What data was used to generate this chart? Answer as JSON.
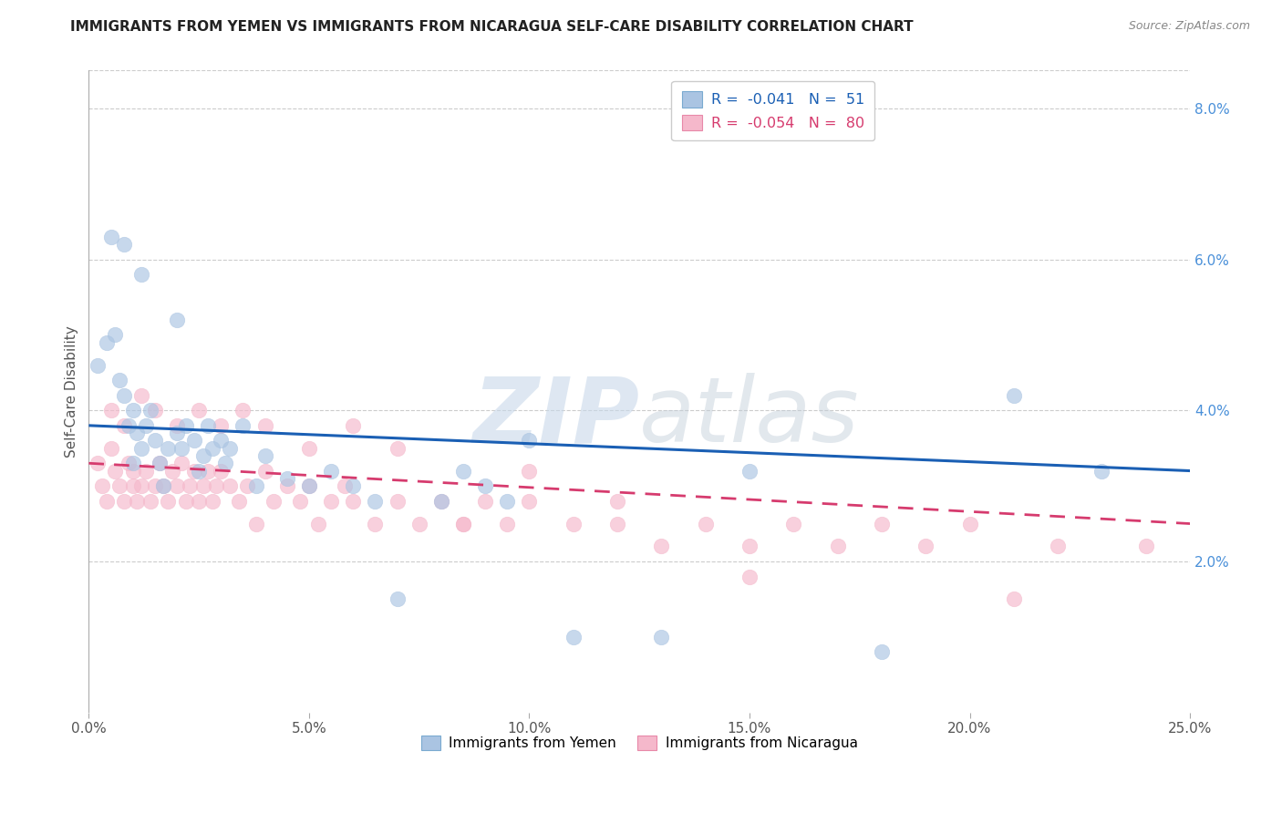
{
  "title": "IMMIGRANTS FROM YEMEN VS IMMIGRANTS FROM NICARAGUA SELF-CARE DISABILITY CORRELATION CHART",
  "source": "Source: ZipAtlas.com",
  "ylabel": "Self-Care Disability",
  "legend_entries": [
    {
      "label": "R =  -0.041   N =  51",
      "color": "#aac4e2"
    },
    {
      "label": "R =  -0.054   N =  80",
      "color": "#f5b8cb"
    }
  ],
  "legend_bottom": [
    {
      "label": "Immigrants from Yemen",
      "color": "#aac4e2"
    },
    {
      "label": "Immigrants from Nicaragua",
      "color": "#f5b8cb"
    }
  ],
  "xlim": [
    0.0,
    0.25
  ],
  "ylim": [
    0.0,
    0.085
  ],
  "right_yticks": [
    0.02,
    0.04,
    0.06,
    0.08
  ],
  "right_yticklabels": [
    "2.0%",
    "4.0%",
    "6.0%",
    "8.0%"
  ],
  "xticklabels": [
    "0.0%",
    "5.0%",
    "10.0%",
    "15.0%",
    "20.0%",
    "25.0%"
  ],
  "xticks": [
    0.0,
    0.05,
    0.1,
    0.15,
    0.2,
    0.25
  ],
  "grid_color": "#cccccc",
  "background_color": "#ffffff",
  "scatter_color_yemen": "#aac4e2",
  "scatter_color_nicaragua": "#f5b8cb",
  "scatter_edge_yemen": "#aac4e2",
  "scatter_edge_nicaragua": "#f5b8cb",
  "trend_color_yemen": "#1a5fb4",
  "trend_color_nicaragua": "#d63b6e",
  "ytick_color": "#4a90d9",
  "watermark_zip": "ZIP",
  "watermark_atlas": "atlas",
  "yemen_x": [
    0.002,
    0.004,
    0.006,
    0.007,
    0.008,
    0.009,
    0.01,
    0.01,
    0.011,
    0.012,
    0.013,
    0.014,
    0.015,
    0.016,
    0.017,
    0.018,
    0.02,
    0.021,
    0.022,
    0.024,
    0.025,
    0.026,
    0.027,
    0.028,
    0.03,
    0.031,
    0.032,
    0.035,
    0.038,
    0.04,
    0.045,
    0.05,
    0.055,
    0.06,
    0.065,
    0.07,
    0.08,
    0.085,
    0.09,
    0.095,
    0.1,
    0.11,
    0.13,
    0.15,
    0.18,
    0.21,
    0.23,
    0.005,
    0.008,
    0.012,
    0.02
  ],
  "yemen_y": [
    0.046,
    0.049,
    0.05,
    0.044,
    0.042,
    0.038,
    0.04,
    0.033,
    0.037,
    0.035,
    0.038,
    0.04,
    0.036,
    0.033,
    0.03,
    0.035,
    0.037,
    0.035,
    0.038,
    0.036,
    0.032,
    0.034,
    0.038,
    0.035,
    0.036,
    0.033,
    0.035,
    0.038,
    0.03,
    0.034,
    0.031,
    0.03,
    0.032,
    0.03,
    0.028,
    0.015,
    0.028,
    0.032,
    0.03,
    0.028,
    0.036,
    0.01,
    0.01,
    0.032,
    0.008,
    0.042,
    0.032,
    0.063,
    0.062,
    0.058,
    0.052
  ],
  "nicaragua_x": [
    0.002,
    0.003,
    0.004,
    0.005,
    0.006,
    0.007,
    0.008,
    0.009,
    0.01,
    0.01,
    0.011,
    0.012,
    0.013,
    0.014,
    0.015,
    0.016,
    0.017,
    0.018,
    0.019,
    0.02,
    0.021,
    0.022,
    0.023,
    0.024,
    0.025,
    0.026,
    0.027,
    0.028,
    0.029,
    0.03,
    0.032,
    0.034,
    0.036,
    0.038,
    0.04,
    0.042,
    0.045,
    0.048,
    0.05,
    0.052,
    0.055,
    0.058,
    0.06,
    0.065,
    0.07,
    0.075,
    0.08,
    0.085,
    0.09,
    0.095,
    0.1,
    0.11,
    0.12,
    0.13,
    0.14,
    0.15,
    0.16,
    0.17,
    0.18,
    0.19,
    0.2,
    0.21,
    0.22,
    0.24,
    0.005,
    0.008,
    0.012,
    0.015,
    0.02,
    0.025,
    0.03,
    0.035,
    0.04,
    0.05,
    0.06,
    0.07,
    0.085,
    0.1,
    0.12,
    0.15
  ],
  "nicaragua_y": [
    0.033,
    0.03,
    0.028,
    0.035,
    0.032,
    0.03,
    0.028,
    0.033,
    0.032,
    0.03,
    0.028,
    0.03,
    0.032,
    0.028,
    0.03,
    0.033,
    0.03,
    0.028,
    0.032,
    0.03,
    0.033,
    0.028,
    0.03,
    0.032,
    0.028,
    0.03,
    0.032,
    0.028,
    0.03,
    0.032,
    0.03,
    0.028,
    0.03,
    0.025,
    0.032,
    0.028,
    0.03,
    0.028,
    0.03,
    0.025,
    0.028,
    0.03,
    0.028,
    0.025,
    0.028,
    0.025,
    0.028,
    0.025,
    0.028,
    0.025,
    0.028,
    0.025,
    0.025,
    0.022,
    0.025,
    0.022,
    0.025,
    0.022,
    0.025,
    0.022,
    0.025,
    0.015,
    0.022,
    0.022,
    0.04,
    0.038,
    0.042,
    0.04,
    0.038,
    0.04,
    0.038,
    0.04,
    0.038,
    0.035,
    0.038,
    0.035,
    0.025,
    0.032,
    0.028,
    0.018
  ],
  "trend_yemen_x0": 0.0,
  "trend_yemen_x1": 0.25,
  "trend_yemen_y0": 0.038,
  "trend_yemen_y1": 0.032,
  "trend_nicaragua_x0": 0.0,
  "trend_nicaragua_x1": 0.25,
  "trend_nicaragua_y0": 0.033,
  "trend_nicaragua_y1": 0.025
}
